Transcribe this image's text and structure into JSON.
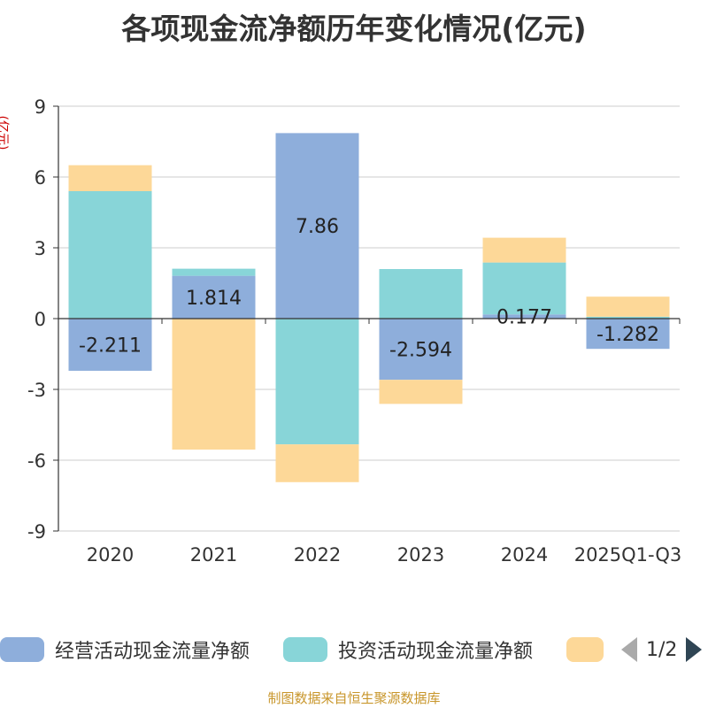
{
  "chart_data": {
    "type": "bar",
    "stacked": true,
    "title": "各项现金流净额历年变化情况(亿元)",
    "ylabel": "(亿元)",
    "categories": [
      "2020",
      "2021",
      "2022",
      "2023",
      "2024",
      "2025Q1-Q3"
    ],
    "ylim": [
      -9,
      9
    ],
    "yticks": [
      "9",
      "6",
      "3",
      "0",
      "-3",
      "-6",
      "-9"
    ],
    "ytick_values": [
      9,
      6,
      3,
      0,
      -3,
      -6,
      -9
    ],
    "grid": true,
    "series": [
      {
        "name": "经营活动现金流量净额",
        "color": "#8eaedb",
        "values": [
          -2.211,
          1.814,
          7.86,
          -2.594,
          0.177,
          -1.282
        ],
        "labels": [
          "-2.211",
          "1.814",
          "7.86",
          "-2.594",
          "0.177",
          "-1.282"
        ]
      },
      {
        "name": "投资活动现金流量净额",
        "color": "#88d5d8",
        "values": [
          5.4,
          0.3,
          -5.33,
          2.1,
          2.2,
          0.08
        ]
      },
      {
        "name": "",
        "color": "#fdd898",
        "values": [
          1.1,
          -5.55,
          -1.6,
          -1.02,
          1.05,
          0.85
        ]
      }
    ],
    "legend_position": "bottom"
  },
  "legend": {
    "page": "1/2"
  },
  "footer": {
    "source": "制图数据来自恒生聚源数据库"
  },
  "colors": {
    "grid": "#cccccc",
    "axis": "#333333",
    "label": "#222222"
  }
}
